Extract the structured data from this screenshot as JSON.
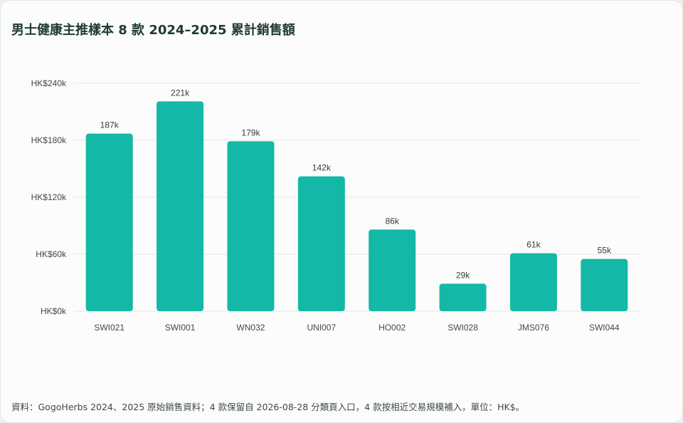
{
  "title": "男士健康主推樣本 8 款 2024–2025 累計銷售額",
  "footnote": "資料：GogoHerbs 2024、2025 原始銷售資料；4 款保留自 2026-08-28 分類頁入口，4 款按相近交易規模補入，單位：HK$。",
  "colors": {
    "bar": "#14b8a6",
    "grid": "#e3e8e5",
    "title": "#1f3b30"
  },
  "chart_data": {
    "type": "bar",
    "title": "男士健康主推樣本 8 款 2024–2025 累計銷售額",
    "xlabel": "",
    "ylabel": "",
    "categories": [
      "SWI021",
      "SWI001",
      "WN032",
      "UNI007",
      "HO002",
      "SWI028",
      "JMS076",
      "SWI044"
    ],
    "values": [
      187000,
      221000,
      179000,
      142000,
      86000,
      29000,
      61000,
      55000
    ],
    "data_labels": [
      "187k",
      "221k",
      "179k",
      "142k",
      "86k",
      "29k",
      "61k",
      "55k"
    ],
    "ylim": [
      0,
      240000
    ],
    "yticks": [
      0,
      60000,
      120000,
      180000,
      240000
    ],
    "ytick_labels": [
      "HK$0k",
      "HK$60k",
      "HK$120k",
      "HK$180k",
      "HK$240k"
    ],
    "grid": true,
    "legend": "none"
  }
}
